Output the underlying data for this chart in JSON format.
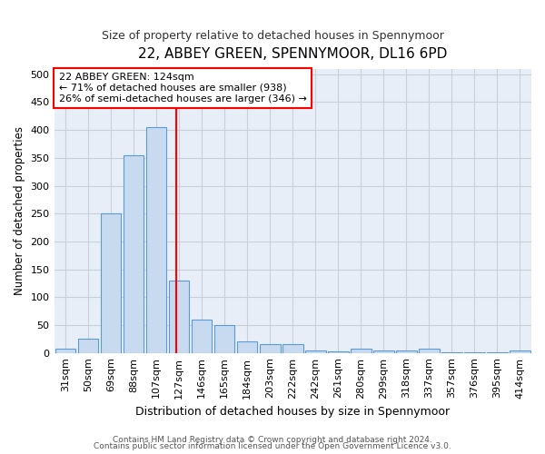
{
  "title": "22, ABBEY GREEN, SPENNYMOOR, DL16 6PD",
  "subtitle": "Size of property relative to detached houses in Spennymoor",
  "xlabel": "Distribution of detached houses by size in Spennymoor",
  "ylabel": "Number of detached properties",
  "categories": [
    "31sqm",
    "50sqm",
    "69sqm",
    "88sqm",
    "107sqm",
    "127sqm",
    "146sqm",
    "165sqm",
    "184sqm",
    "203sqm",
    "222sqm",
    "242sqm",
    "261sqm",
    "280sqm",
    "299sqm",
    "318sqm",
    "337sqm",
    "357sqm",
    "376sqm",
    "395sqm",
    "414sqm"
  ],
  "values": [
    7,
    25,
    250,
    355,
    405,
    130,
    60,
    50,
    20,
    15,
    15,
    5,
    3,
    8,
    5,
    5,
    8,
    1,
    1,
    1,
    4
  ],
  "bar_color": "#c8daf0",
  "bar_edge_color": "#5b9bd5",
  "annotation_text_line1": "22 ABBEY GREEN: 124sqm",
  "annotation_text_line2": "← 71% of detached houses are smaller (938)",
  "annotation_text_line3": "26% of semi-detached houses are larger (346) →",
  "annotation_box_color": "white",
  "annotation_box_edge_color": "red",
  "vline_color": "red",
  "vline_x_index": 4.88,
  "ylim": [
    0,
    510
  ],
  "yticks": [
    0,
    50,
    100,
    150,
    200,
    250,
    300,
    350,
    400,
    450,
    500
  ],
  "bg_color": "#e8eef8",
  "grid_color": "#c8d0dc",
  "footer_line1": "Contains HM Land Registry data © Crown copyright and database right 2024.",
  "footer_line2": "Contains public sector information licensed under the Open Government Licence v3.0."
}
